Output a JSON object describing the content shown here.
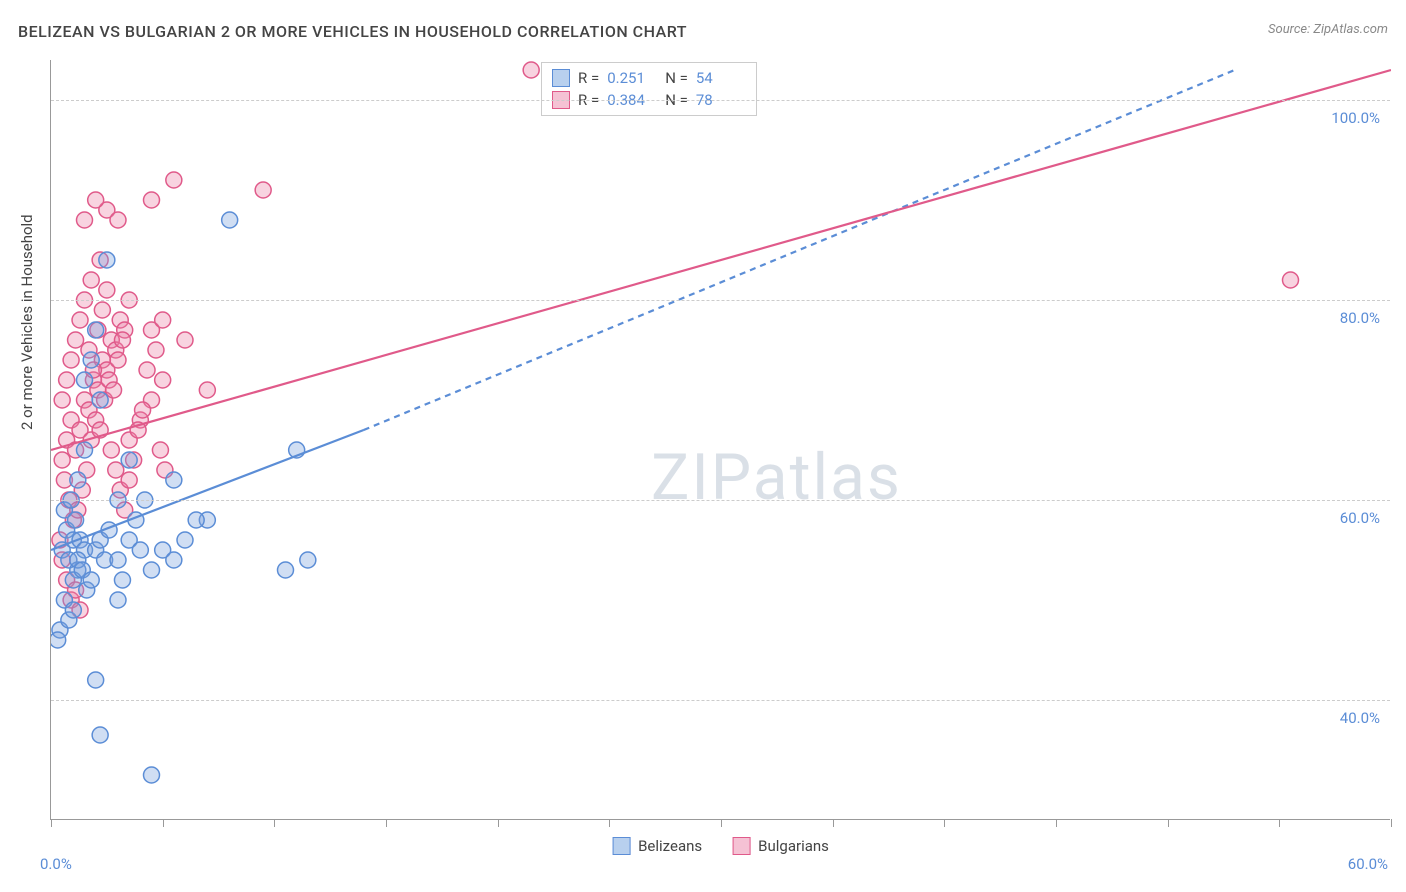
{
  "title": "BELIZEAN VS BULGARIAN 2 OR MORE VEHICLES IN HOUSEHOLD CORRELATION CHART",
  "source": "Source: ZipAtlas.com",
  "y_axis_label": "2 or more Vehicles in Household",
  "watermark": "ZIPatlas",
  "chart": {
    "type": "scatter",
    "background_color": "#ffffff",
    "grid_color": "#cccccc",
    "axis_color": "#999999",
    "text_color": "#444444",
    "tick_label_color": "#5b8dd6",
    "xlim": [
      0,
      60
    ],
    "ylim": [
      28,
      104
    ],
    "x_ticks": [
      0,
      5,
      10,
      15,
      20,
      25,
      30,
      35,
      40,
      45,
      50,
      55,
      60
    ],
    "x_tick_labels": {
      "0": "0.0%",
      "60": "60.0%"
    },
    "y_ticks": [
      40,
      60,
      80,
      100
    ],
    "y_tick_labels": {
      "40": "40.0%",
      "60": "60.0%",
      "80": "80.0%",
      "100": "100.0%"
    },
    "fontsize_title": 16,
    "fontsize_labels": 15,
    "fontsize_ticks": 15,
    "marker_radius": 8,
    "marker_stroke_width": 1.5,
    "line_width": 2.2
  },
  "series": {
    "belizeans": {
      "label": "Belizeans",
      "fill": "rgba(120,160,220,0.35)",
      "stroke": "#5b8dd6",
      "swatch_fill": "#b8d0ee",
      "swatch_stroke": "#5b8dd6",
      "r": 0.251,
      "n": 54,
      "trend_solid": {
        "x1": 0,
        "y1": 55,
        "x2": 14,
        "y2": 67
      },
      "trend_dash": {
        "x1": 14,
        "y1": 67,
        "x2": 53,
        "y2": 103
      },
      "points": [
        [
          0.5,
          55
        ],
        [
          0.7,
          57
        ],
        [
          0.8,
          54
        ],
        [
          1.0,
          56
        ],
        [
          1.2,
          53
        ],
        [
          0.6,
          59
        ],
        [
          0.9,
          60
        ],
        [
          1.1,
          58
        ],
        [
          1.3,
          56
        ],
        [
          1.5,
          55
        ],
        [
          0.4,
          47
        ],
        [
          0.3,
          46
        ],
        [
          1.0,
          52
        ],
        [
          1.2,
          54
        ],
        [
          1.4,
          53
        ],
        [
          1.6,
          51
        ],
        [
          1.8,
          52
        ],
        [
          2.0,
          55
        ],
        [
          2.2,
          56
        ],
        [
          2.4,
          54
        ],
        [
          2.6,
          57
        ],
        [
          0.6,
          50
        ],
        [
          0.8,
          48
        ],
        [
          1.0,
          49
        ],
        [
          3.0,
          54
        ],
        [
          3.5,
          56
        ],
        [
          4.0,
          55
        ],
        [
          4.5,
          53
        ],
        [
          5.0,
          55
        ],
        [
          5.5,
          54
        ],
        [
          6.0,
          56
        ],
        [
          7.0,
          58
        ],
        [
          8.0,
          88
        ],
        [
          2.0,
          77
        ],
        [
          2.5,
          84
        ],
        [
          1.5,
          72
        ],
        [
          1.8,
          74
        ],
        [
          2.2,
          70
        ],
        [
          3.0,
          60
        ],
        [
          3.5,
          64
        ],
        [
          11.0,
          65
        ],
        [
          10.5,
          53
        ],
        [
          11.5,
          54
        ],
        [
          2.0,
          42
        ],
        [
          2.2,
          36.5
        ],
        [
          4.5,
          32.5
        ],
        [
          3.0,
          50
        ],
        [
          3.2,
          52
        ],
        [
          3.8,
          58
        ],
        [
          4.2,
          60
        ],
        [
          5.5,
          62
        ],
        [
          6.5,
          58
        ],
        [
          1.2,
          62
        ],
        [
          1.5,
          65
        ]
      ]
    },
    "bulgarians": {
      "label": "Bulgarians",
      "fill": "rgba(235,130,165,0.35)",
      "stroke": "#e05a8a",
      "swatch_fill": "#f5c2d4",
      "swatch_stroke": "#e05a8a",
      "r": 0.384,
      "n": 78,
      "trend_solid": {
        "x1": 0,
        "y1": 65,
        "x2": 60,
        "y2": 103
      },
      "points": [
        [
          0.5,
          64
        ],
        [
          0.7,
          66
        ],
        [
          0.9,
          68
        ],
        [
          1.1,
          65
        ],
        [
          1.3,
          67
        ],
        [
          1.5,
          70
        ],
        [
          1.7,
          69
        ],
        [
          1.9,
          72
        ],
        [
          2.1,
          71
        ],
        [
          2.3,
          74
        ],
        [
          2.5,
          73
        ],
        [
          2.7,
          76
        ],
        [
          2.9,
          75
        ],
        [
          3.1,
          78
        ],
        [
          3.3,
          77
        ],
        [
          3.5,
          80
        ],
        [
          0.6,
          62
        ],
        [
          0.8,
          60
        ],
        [
          1.0,
          58
        ],
        [
          1.2,
          59
        ],
        [
          1.4,
          61
        ],
        [
          1.6,
          63
        ],
        [
          1.8,
          66
        ],
        [
          2.0,
          68
        ],
        [
          2.2,
          67
        ],
        [
          2.4,
          70
        ],
        [
          2.6,
          72
        ],
        [
          2.8,
          71
        ],
        [
          3.0,
          74
        ],
        [
          3.2,
          76
        ],
        [
          0.4,
          56
        ],
        [
          0.5,
          54
        ],
        [
          0.7,
          52
        ],
        [
          0.9,
          50
        ],
        [
          1.1,
          51
        ],
        [
          1.3,
          49
        ],
        [
          2.5,
          89
        ],
        [
          3.0,
          88
        ],
        [
          4.5,
          90
        ],
        [
          5.5,
          92
        ],
        [
          1.5,
          88
        ],
        [
          2.0,
          90
        ],
        [
          1.8,
          82
        ],
        [
          2.2,
          84
        ],
        [
          9.5,
          91
        ],
        [
          4.5,
          77
        ],
        [
          5.0,
          78
        ],
        [
          6.0,
          76
        ],
        [
          7.0,
          71
        ],
        [
          3.5,
          66
        ],
        [
          4.0,
          68
        ],
        [
          4.5,
          70
        ],
        [
          5.0,
          72
        ],
        [
          55.5,
          82
        ],
        [
          21.5,
          103
        ],
        [
          0.5,
          70
        ],
        [
          0.7,
          72
        ],
        [
          0.9,
          74
        ],
        [
          1.1,
          76
        ],
        [
          1.3,
          78
        ],
        [
          1.5,
          80
        ],
        [
          1.7,
          75
        ],
        [
          1.9,
          73
        ],
        [
          2.1,
          77
        ],
        [
          2.3,
          79
        ],
        [
          2.5,
          81
        ],
        [
          2.7,
          65
        ],
        [
          2.9,
          63
        ],
        [
          3.1,
          61
        ],
        [
          3.3,
          59
        ],
        [
          3.5,
          62
        ],
        [
          3.7,
          64
        ],
        [
          3.9,
          67
        ],
        [
          4.1,
          69
        ],
        [
          4.3,
          73
        ],
        [
          4.7,
          75
        ],
        [
          4.9,
          65
        ],
        [
          5.1,
          63
        ]
      ]
    }
  },
  "stats_legend": {
    "r_label": "R  =",
    "n_label": "N  ="
  },
  "bottom_legend": [
    "belizeans",
    "bulgarians"
  ]
}
